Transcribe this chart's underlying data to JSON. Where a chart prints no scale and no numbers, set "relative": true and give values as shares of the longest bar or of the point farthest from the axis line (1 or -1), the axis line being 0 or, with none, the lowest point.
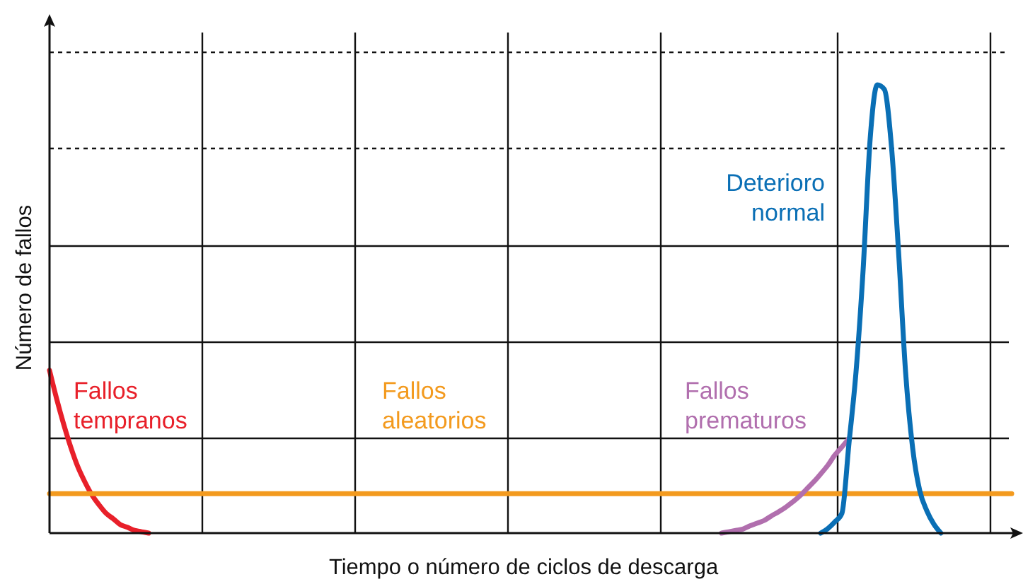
{
  "chart_data": {
    "type": "line",
    "relative": true,
    "xlabel": "Tiempo o número de ciclos de descarga",
    "ylabel": "Número de fallos",
    "grid": true,
    "legend": false,
    "ref_lines": [
      {
        "axis": "y",
        "value": 0.858,
        "line_style": "dotted"
      }
    ],
    "categories": [
      null,
      null,
      null,
      null,
      null,
      null,
      null,
      null,
      null,
      null,
      null,
      null,
      null,
      null,
      null,
      null,
      null,
      null,
      null,
      null,
      null,
      null,
      null,
      null,
      null,
      null,
      null,
      null,
      null,
      null,
      null,
      null,
      null,
      null,
      null,
      null,
      null,
      null,
      null,
      null,
      null,
      null,
      null,
      null,
      null,
      null,
      null,
      null,
      null,
      null,
      null,
      null,
      null,
      null,
      null,
      null,
      null,
      null,
      null,
      null,
      null,
      null,
      null,
      null,
      null,
      null,
      null,
      null,
      null,
      null,
      null,
      null,
      null,
      null,
      null,
      null,
      null,
      null,
      null,
      null,
      null,
      null,
      null,
      null,
      null,
      null,
      null,
      null,
      null,
      null,
      null,
      null,
      null,
      null,
      null,
      null,
      null,
      null,
      null,
      null,
      null,
      null,
      null,
      null,
      null,
      null,
      null,
      null,
      null,
      null,
      null,
      null,
      null,
      null,
      null,
      null,
      null,
      null,
      null,
      null,
      null,
      null,
      null,
      null,
      null,
      null,
      null,
      null,
      null,
      null,
      null,
      null,
      null,
      null,
      null,
      null,
      null
    ],
    "series": [
      {
        "name": "Fallos tempranos",
        "color": "#e8202a",
        "values": [
          0.363,
          0.3,
          0.243,
          0.192,
          0.148,
          0.114,
          0.085,
          0.063,
          0.044,
          0.032,
          0.019,
          0.013,
          0.006,
          0.003,
          0,
          null,
          null,
          null,
          null,
          null,
          null,
          null,
          null,
          null,
          null,
          null,
          null,
          null,
          null,
          null,
          null,
          null,
          null,
          null,
          null,
          null,
          null,
          null,
          null,
          null,
          null,
          null,
          null,
          null,
          null,
          null,
          null,
          null,
          null,
          null,
          null,
          null,
          null,
          null,
          null,
          null,
          null,
          null,
          null,
          null,
          null,
          null,
          null,
          null,
          null,
          null,
          null,
          null,
          null,
          null,
          null,
          null,
          null,
          null,
          null,
          null,
          null,
          null,
          null,
          null,
          null,
          null,
          null,
          null,
          null,
          null,
          null,
          null,
          null,
          null,
          null,
          null,
          null,
          null,
          null,
          null,
          null,
          null,
          null,
          null,
          null,
          null,
          null,
          null,
          null,
          null,
          null,
          null,
          null,
          null,
          null,
          null,
          null,
          null,
          null,
          null,
          null,
          null,
          null,
          null,
          null,
          null,
          null,
          null,
          null,
          null,
          null,
          null,
          null,
          null,
          null,
          null,
          null,
          null,
          null,
          null,
          null
        ]
      },
      {
        "name": "Fallos aleatorios",
        "color": "#f39a1e",
        "values": [
          0.088,
          0.088,
          0.088,
          0.088,
          0.088,
          0.088,
          0.088,
          0.088,
          0.088,
          0.088,
          0.088,
          0.088,
          0.088,
          0.088,
          0.088,
          0.088,
          0.088,
          0.088,
          0.088,
          0.088,
          0.088,
          0.088,
          0.088,
          0.088,
          0.088,
          0.088,
          0.088,
          0.088,
          0.088,
          0.088,
          0.088,
          0.088,
          0.088,
          0.088,
          0.088,
          0.088,
          0.088,
          0.088,
          0.088,
          0.088,
          0.088,
          0.088,
          0.088,
          0.088,
          0.088,
          0.088,
          0.088,
          0.088,
          0.088,
          0.088,
          0.088,
          0.088,
          0.088,
          0.088,
          0.088,
          0.088,
          0.088,
          0.088,
          0.088,
          0.088,
          0.088,
          0.088,
          0.088,
          0.088,
          0.088,
          0.088,
          0.088,
          0.088,
          0.088,
          0.088,
          0.088,
          0.088,
          0.088,
          0.088,
          0.088,
          0.088,
          0.088,
          0.088,
          0.088,
          0.088,
          0.088,
          0.088,
          0.088,
          0.088,
          0.088,
          0.088,
          0.088,
          0.088,
          0.088,
          0.088,
          0.088,
          0.088,
          0.088,
          0.088,
          0.088,
          0.088,
          0.088,
          0.088,
          0.088,
          0.088,
          0.088,
          0.088,
          0.088,
          0.088,
          0.088,
          0.088,
          0.088,
          0.088,
          0.088,
          0.088,
          0.088,
          0.088,
          0.088,
          0.088,
          0.088,
          0.088,
          0.088,
          0.088,
          0.088,
          0.088,
          0.088,
          0.088,
          0.088,
          0.088,
          0.088,
          0.088,
          0.088,
          0.088,
          0.088,
          0.088,
          0.088,
          0.088,
          0.088,
          0.088,
          0.088,
          0.088,
          0.088
        ]
      },
      {
        "name": "Fallos prematuros",
        "color": "#b16fae",
        "values": [
          null,
          null,
          null,
          null,
          null,
          null,
          null,
          null,
          null,
          null,
          null,
          null,
          null,
          null,
          null,
          null,
          null,
          null,
          null,
          null,
          null,
          null,
          null,
          null,
          null,
          null,
          null,
          null,
          null,
          null,
          null,
          null,
          null,
          null,
          null,
          null,
          null,
          null,
          null,
          null,
          null,
          null,
          null,
          null,
          null,
          null,
          null,
          null,
          null,
          null,
          null,
          null,
          null,
          null,
          null,
          null,
          null,
          null,
          null,
          null,
          null,
          null,
          null,
          null,
          null,
          null,
          null,
          null,
          null,
          null,
          null,
          null,
          null,
          null,
          null,
          null,
          null,
          null,
          null,
          null,
          null,
          null,
          null,
          null,
          null,
          null,
          null,
          null,
          null,
          null,
          null,
          null,
          null,
          null,
          null,
          0,
          0.003,
          0.006,
          0.009,
          0.016,
          0.022,
          0.028,
          0.038,
          0.047,
          0.057,
          0.069,
          0.082,
          0.098,
          0.114,
          0.132,
          0.151,
          0.174,
          0.192,
          0.211,
          null,
          null,
          null,
          null,
          null,
          null,
          null,
          null,
          null,
          null,
          null,
          null,
          null,
          null,
          null,
          null,
          null,
          null,
          null,
          null,
          null,
          null,
          null
        ]
      },
      {
        "name": "Deterioro normal",
        "color": "#0a6fb5",
        "values": [
          null,
          null,
          null,
          null,
          null,
          null,
          null,
          null,
          null,
          null,
          null,
          null,
          null,
          null,
          null,
          null,
          null,
          null,
          null,
          null,
          null,
          null,
          null,
          null,
          null,
          null,
          null,
          null,
          null,
          null,
          null,
          null,
          null,
          null,
          null,
          null,
          null,
          null,
          null,
          null,
          null,
          null,
          null,
          null,
          null,
          null,
          null,
          null,
          null,
          null,
          null,
          null,
          null,
          null,
          null,
          null,
          null,
          null,
          null,
          null,
          null,
          null,
          null,
          null,
          null,
          null,
          null,
          null,
          null,
          null,
          null,
          null,
          null,
          null,
          null,
          null,
          null,
          null,
          null,
          null,
          null,
          null,
          null,
          null,
          null,
          null,
          null,
          null,
          null,
          null,
          null,
          null,
          null,
          null,
          null,
          null,
          null,
          null,
          null,
          null,
          null,
          null,
          null,
          null,
          null,
          null,
          null,
          null,
          null,
          0,
          0.01,
          0.025,
          0.044,
          0.2,
          0.36,
          0.587,
          0.88,
          1,
          0.99,
          0.864,
          0.63,
          0.36,
          0.19,
          0.095,
          0.05,
          0.02,
          0,
          null,
          null,
          null,
          null,
          null,
          null,
          null,
          null,
          null,
          null
        ]
      }
    ]
  }
}
